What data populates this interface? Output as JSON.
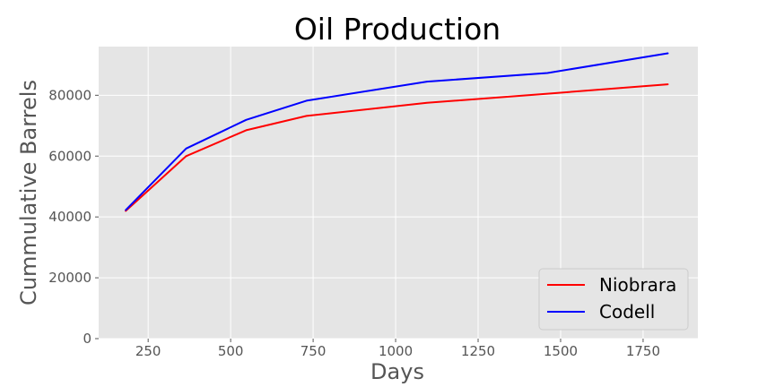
{
  "chart_data": {
    "type": "line",
    "title": "Oil Production",
    "xlabel": "Days",
    "ylabel": "Cummulative Barrels",
    "xlim": [
      100,
      1916
    ],
    "ylim": [
      0,
      96000
    ],
    "xticks": [
      250,
      500,
      750,
      1000,
      1250,
      1500,
      1750
    ],
    "yticks": [
      0,
      20000,
      40000,
      60000,
      80000
    ],
    "grid": true,
    "legend_position": "lower-right",
    "x": [
      182,
      365,
      547,
      730,
      1095,
      1460,
      1825
    ],
    "series": [
      {
        "name": "Niobrara",
        "color": "#ff0000",
        "values": [
          42000,
          60000,
          68500,
          73200,
          77500,
          80500,
          83600
        ]
      },
      {
        "name": "Codell",
        "color": "#0000ff",
        "values": [
          42300,
          62500,
          71900,
          78200,
          84500,
          87300,
          93800
        ]
      }
    ]
  }
}
